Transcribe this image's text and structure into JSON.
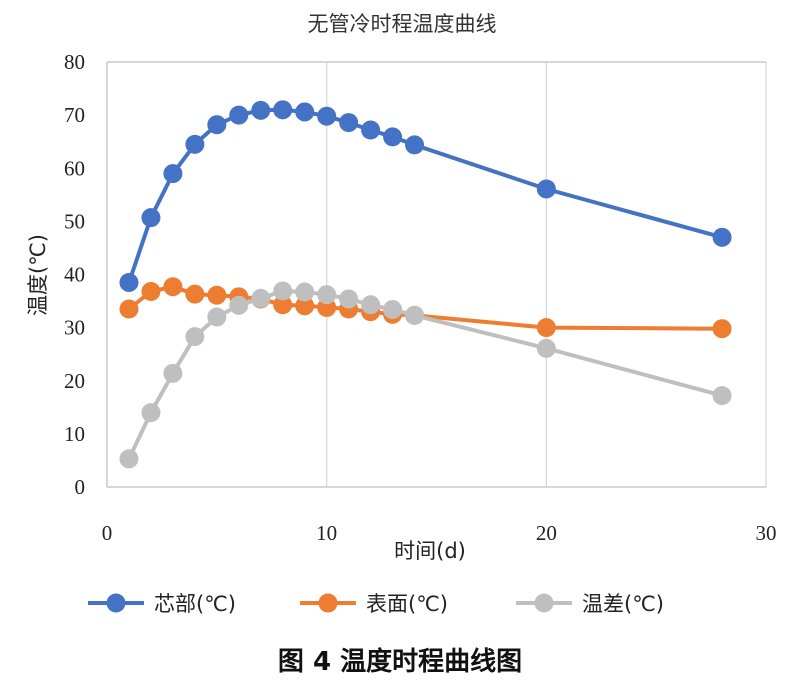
{
  "chart_data": {
    "type": "line",
    "title": "无管冷时程温度曲线",
    "xlabel": "时间(d)",
    "ylabel": "温度(℃)",
    "xlim": [
      0,
      30
    ],
    "ylim": [
      0,
      80
    ],
    "xticks": [
      "0",
      "10",
      "20",
      "30"
    ],
    "yticks": [
      "0",
      "10",
      "20",
      "30",
      "40",
      "50",
      "60",
      "70",
      "80"
    ],
    "grid": "vertical",
    "legend_position": "bottom",
    "series": [
      {
        "name": "芯部(℃)",
        "color": "#4472C4",
        "x": [
          1,
          2,
          3,
          4,
          5,
          6,
          7,
          8,
          9,
          10,
          11,
          12,
          13,
          14,
          20,
          28
        ],
        "y": [
          38.5,
          50.7,
          59,
          64.5,
          68.2,
          70,
          70.9,
          71,
          70.6,
          69.8,
          68.6,
          67.2,
          65.9,
          64.4,
          56.1,
          47
        ]
      },
      {
        "name": "表面(℃)",
        "color": "#ED7D31",
        "x": [
          1,
          2,
          3,
          4,
          5,
          6,
          7,
          8,
          9,
          10,
          11,
          12,
          13,
          14,
          20,
          28
        ],
        "y": [
          33.5,
          36.8,
          37.7,
          36.3,
          36.1,
          35.8,
          35.4,
          34.3,
          34.1,
          33.8,
          33.5,
          33,
          32.5,
          32.3,
          30,
          29.8
        ]
      },
      {
        "name": "温差(℃)",
        "color": "#BFBFBF",
        "x": [
          1,
          2,
          3,
          4,
          5,
          6,
          7,
          8,
          9,
          10,
          11,
          12,
          13,
          14,
          20,
          28
        ],
        "y": [
          5.3,
          14,
          21.4,
          28.3,
          32,
          34.2,
          35.5,
          36.9,
          36.7,
          36.2,
          35.4,
          34.3,
          33.4,
          32.3,
          26.1,
          17.2
        ]
      }
    ]
  },
  "caption": "图 4  温度时程曲线图"
}
